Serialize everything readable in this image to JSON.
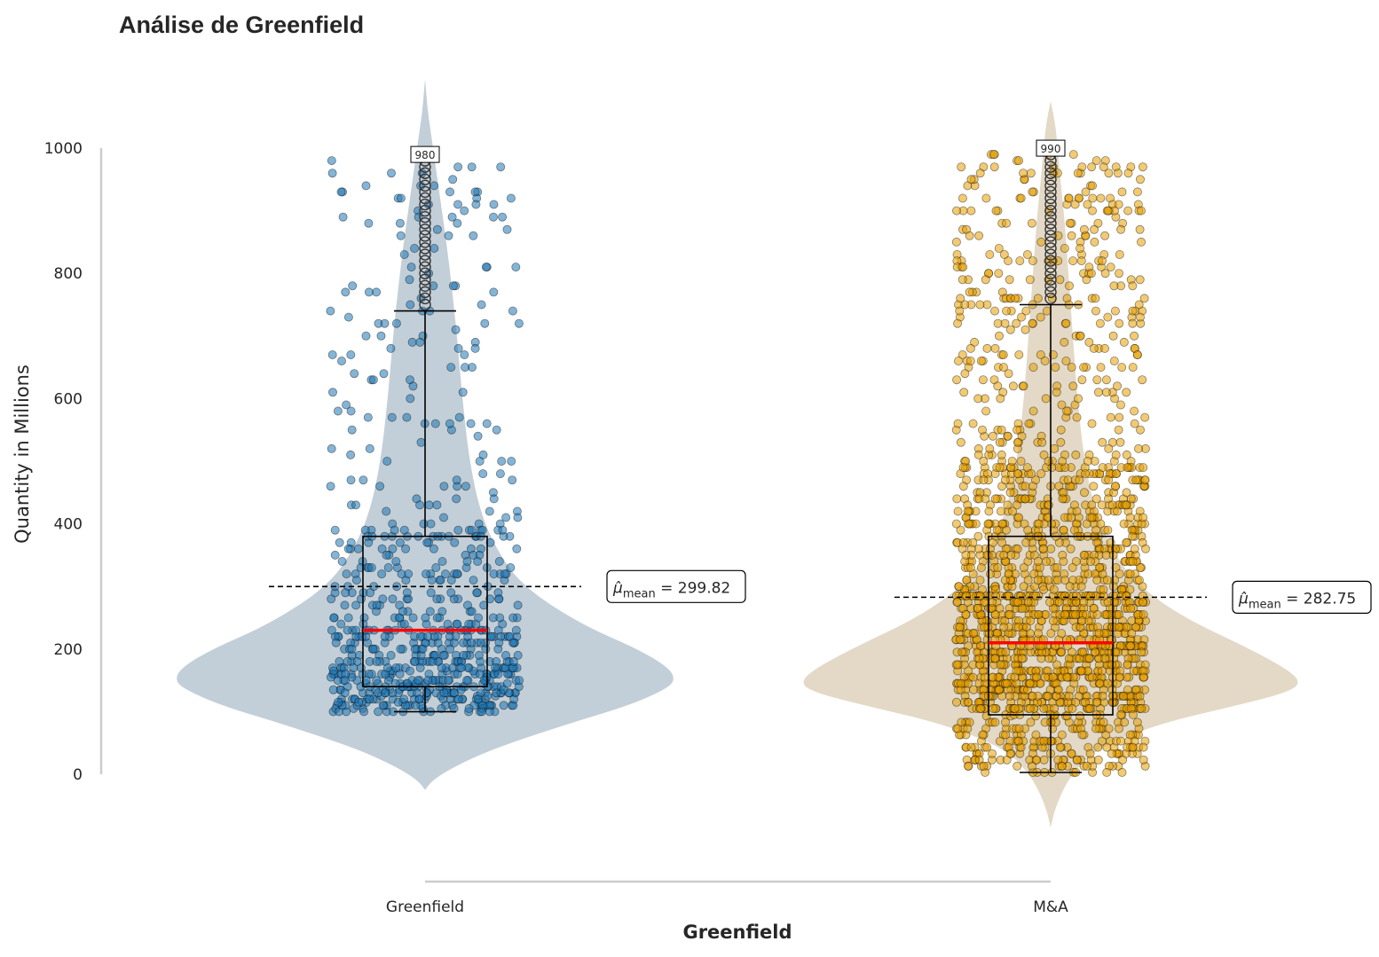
{
  "chart_data": {
    "type": "violin",
    "title": "Análise de Greenfield",
    "xlabel": "Greenfield",
    "ylabel": "Quantity in Millions",
    "ylim": [
      0,
      1000
    ],
    "yticks": [
      0,
      200,
      400,
      600,
      800,
      1000
    ],
    "categories": [
      "Greenfield",
      "M&A"
    ],
    "grid": false,
    "overlays": [
      "violin",
      "boxplot",
      "jittered points",
      "mean line"
    ],
    "series": [
      {
        "category": "Greenfield",
        "violin_color": "#c2cfd8",
        "point_color": "#1f77b4",
        "point_count_approx": 700,
        "min": 100,
        "q1": 140,
        "median": 230,
        "q3": 380,
        "whisker_high": 740,
        "max": 980,
        "max_label": "980",
        "mean": 299.82,
        "mean_label": "= 299.82",
        "median_color": "#ff0000"
      },
      {
        "category": "M&A",
        "violin_color": "#e3d9c6",
        "point_color": "#e69f00",
        "point_count_approx": 1800,
        "min": 3,
        "q1": 95,
        "median": 210,
        "q3": 380,
        "whisker_high": 750,
        "max": 990,
        "max_label": "990",
        "mean": 282.75,
        "mean_label": "= 282.75",
        "median_color": "#ff0000"
      }
    ]
  }
}
